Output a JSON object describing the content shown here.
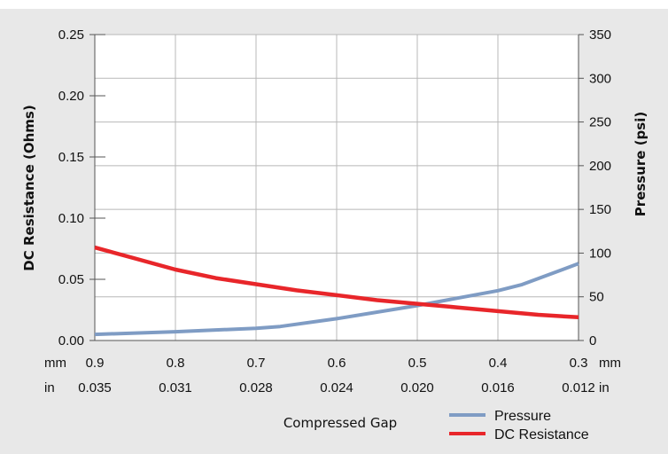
{
  "chart_data": {
    "type": "line",
    "title": "",
    "xlabel": "Compressed Gap",
    "ylabel_left": "DC Resistance (Ohms)",
    "ylabel_right": "Pressure (psi)",
    "x_unit_primary": "mm",
    "x_unit_secondary": "in",
    "x_ticks_mm": [
      "0.9",
      "0.8",
      "0.7",
      "0.6",
      "0.5",
      "0.4",
      "0.3"
    ],
    "x_ticks_in": [
      "0.035",
      "0.031",
      "0.028",
      "0.024",
      "0.020",
      "0.016",
      "0.012"
    ],
    "xlim": [
      0.9,
      0.3
    ],
    "ylim_left": [
      0,
      0.25
    ],
    "ylim_right": [
      0,
      350
    ],
    "y_ticks_left": [
      "0.00",
      "0.05",
      "0.10",
      "0.15",
      "0.20",
      "0.25"
    ],
    "y_ticks_right": [
      "0",
      "50",
      "100",
      "150",
      "200",
      "250",
      "300",
      "350"
    ],
    "grid": true,
    "legend_position": "bottom-right",
    "series": [
      {
        "name": "Pressure",
        "axis": "right",
        "color": "#7f9cc4",
        "x": [
          0.9,
          0.8,
          0.7,
          0.67,
          0.6,
          0.5,
          0.4,
          0.37,
          0.3
        ],
        "y": [
          7,
          10,
          14,
          16,
          25,
          40,
          57,
          64,
          88
        ]
      },
      {
        "name": "DC Resistance",
        "axis": "left",
        "color": "#e8262a",
        "x": [
          0.9,
          0.85,
          0.8,
          0.75,
          0.7,
          0.65,
          0.6,
          0.55,
          0.5,
          0.45,
          0.4,
          0.35,
          0.3
        ],
        "y": [
          0.076,
          0.067,
          0.058,
          0.051,
          0.046,
          0.041,
          0.037,
          0.033,
          0.03,
          0.027,
          0.024,
          0.021,
          0.019
        ]
      }
    ]
  }
}
